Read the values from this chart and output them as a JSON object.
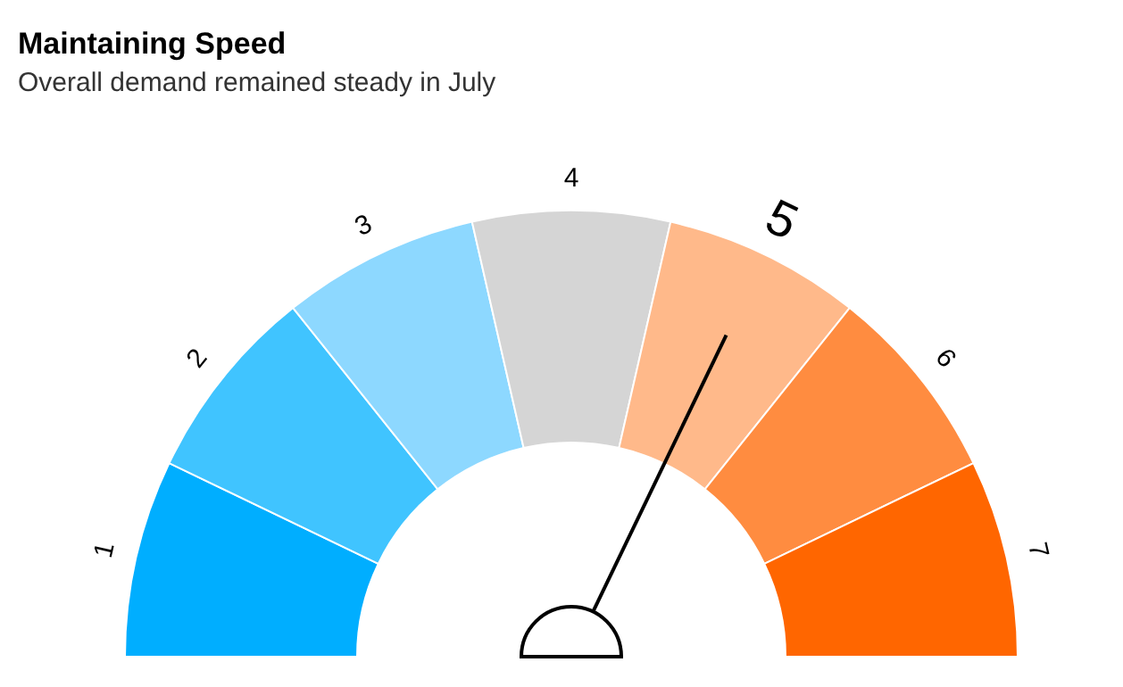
{
  "chart_data": {
    "type": "donut",
    "title": "Maintaining Speed",
    "subtitle": "Overall demand remained steady in July",
    "categories": [
      "1",
      "2",
      "3",
      "4",
      "5",
      "6",
      "7"
    ],
    "values": [
      14.29,
      14.29,
      14.29,
      14.29,
      14.29,
      14.29,
      14.29
    ],
    "colors": [
      "#00aeff",
      "#40c4ff",
      "#8dd8ff",
      "#d5d5d5",
      "#ffb98a",
      "#ff8c40",
      "#ff6600"
    ],
    "needle": "5"
  }
}
